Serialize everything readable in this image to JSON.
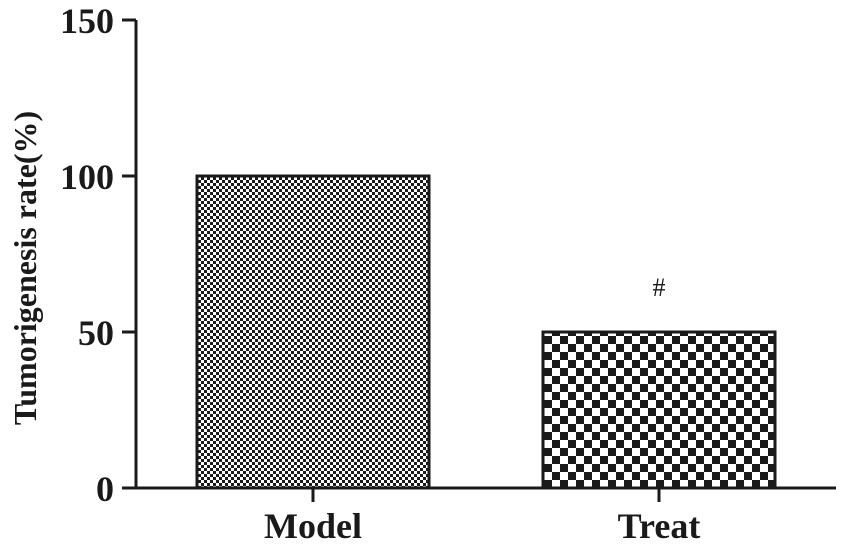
{
  "chart_data": {
    "type": "bar",
    "title": "",
    "xlabel": "",
    "ylabel": "Tumorigenesis rate(%)",
    "categories": [
      "Model",
      "Treat"
    ],
    "values": [
      100,
      50
    ],
    "ylim": [
      0,
      150
    ],
    "yticks": [
      0,
      50,
      100,
      150
    ],
    "ytick_labels": [
      "0",
      "50",
      "100",
      "150"
    ],
    "annotations": [
      {
        "category": "Treat",
        "text": "#"
      }
    ],
    "grid": false,
    "legend": "none",
    "bar_fills": [
      "fine-checker",
      "coarse-checker"
    ],
    "colors": {
      "axis": "#1a1a1a",
      "bar_dark": "#1a1a1a",
      "bar_light": "#ffffff"
    }
  }
}
